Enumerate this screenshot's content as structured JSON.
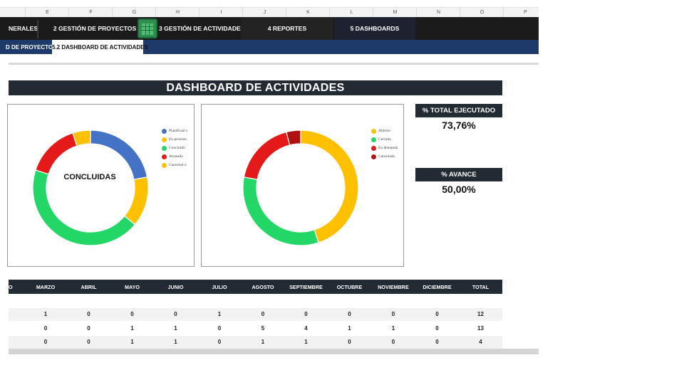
{
  "column_letters": [
    "E",
    "F",
    "G",
    "H",
    "I",
    "J",
    "K",
    "L",
    "M",
    "N",
    "O",
    "P"
  ],
  "nav": {
    "tabs": [
      {
        "label": "NERALES"
      },
      {
        "label": "2 GESTIÓN DE PROYECTOS"
      },
      {
        "label": "3 GESTIÓN DE ACTIVIDADES"
      },
      {
        "label": "4 REPORTES"
      },
      {
        "label": "5 DASHBOARDS"
      }
    ]
  },
  "subnav": {
    "tabs": [
      {
        "label": "D DE PROYECTOS"
      },
      {
        "label": "5.2 DASHBOARD DE ACTIVIDADES"
      }
    ]
  },
  "dashboard": {
    "title": "DASHBOARD DE ACTIVIDADES",
    "chart1_center_label": "CONCLUIDAS",
    "kpis": [
      {
        "label": "% TOTAL EJECUTADO",
        "value": "73,76%"
      },
      {
        "label": "% AVANCE",
        "value": "50,00%"
      }
    ]
  },
  "chart_data": [
    {
      "type": "pie",
      "title": "CONCLUIDAS",
      "categories": [
        "Planificad o",
        "En proceso",
        "Concluido",
        "Atrasado",
        "Cancelad o"
      ],
      "values": [
        22,
        14,
        44,
        15,
        5
      ],
      "colors": [
        "#4472c4",
        "#ffc000",
        "#22d766",
        "#e41a1a",
        "#ffc000"
      ],
      "legend": "right"
    },
    {
      "type": "pie",
      "title": "",
      "categories": [
        "Abierto",
        "Cerrado",
        "En demanda",
        "Cancelado"
      ],
      "values": [
        45,
        33,
        18,
        4
      ],
      "colors": [
        "#ffc000",
        "#22d766",
        "#e41a1a",
        "#b01010"
      ],
      "legend": "right"
    }
  ],
  "table": {
    "headers": [
      "O",
      "MARZO",
      "ABRIL",
      "MAYO",
      "JUNIO",
      "JULIO",
      "AGOSTO",
      "SEPTIEMBRE",
      "OCTUBRE",
      "NOVIEMBRE",
      "DICIEMBRE",
      "TOTAL"
    ],
    "rows": [
      [
        "",
        "1",
        "0",
        "0",
        "0",
        "1",
        "0",
        "0",
        "0",
        "0",
        "0",
        "12"
      ],
      [
        "",
        "0",
        "0",
        "1",
        "1",
        "0",
        "5",
        "4",
        "1",
        "1",
        "0",
        "13"
      ],
      [
        "",
        "0",
        "0",
        "1",
        "1",
        "0",
        "1",
        "1",
        "0",
        "0",
        "0",
        "4"
      ]
    ]
  }
}
